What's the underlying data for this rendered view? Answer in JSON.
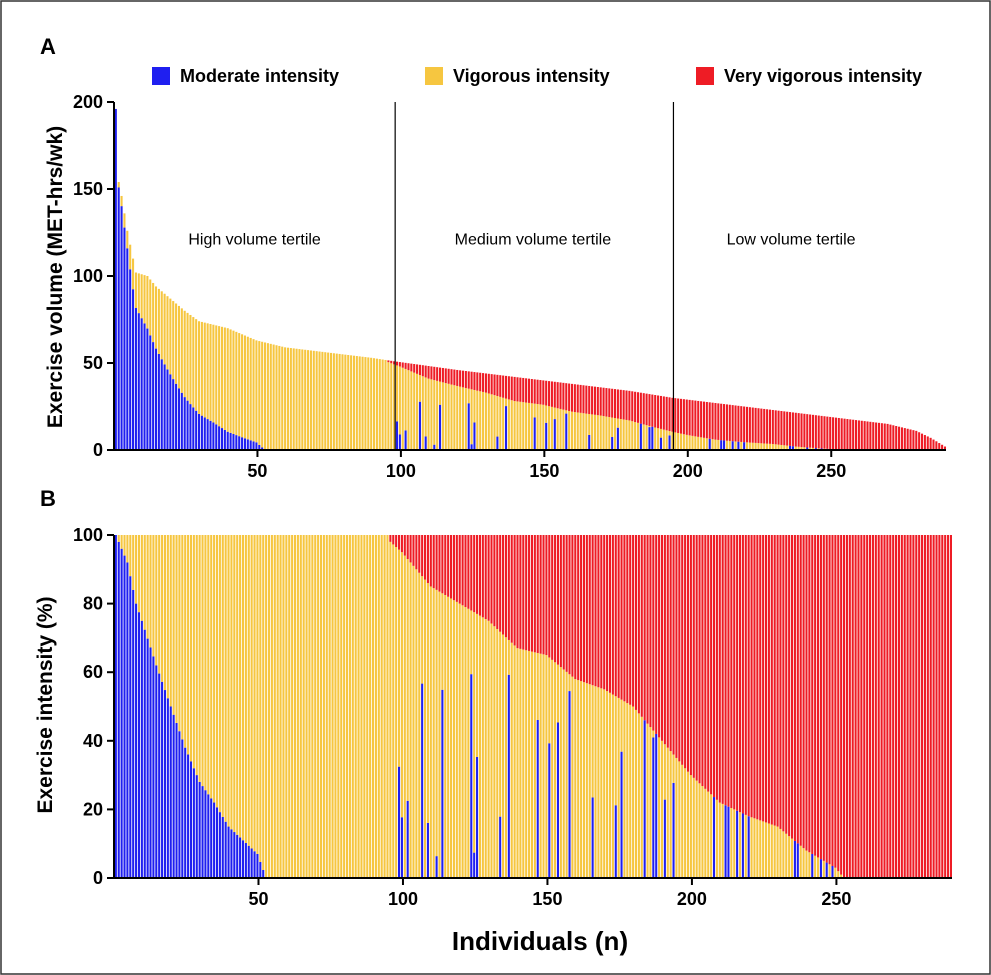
{
  "panels": {
    "a": {
      "label": "A"
    },
    "b": {
      "label": "B"
    }
  },
  "legend": {
    "items": [
      {
        "name": "Moderate intensity",
        "color": "#1f1ff0"
      },
      {
        "name": "Vigorous intensity",
        "color": "#f6c640"
      },
      {
        "name": "Very vigorous intensity",
        "color": "#ee1c25"
      }
    ]
  },
  "colors": {
    "moderate": "#1f1ff0",
    "vigorous": "#f6c640",
    "very_vigorous": "#ee1c25",
    "axis": "#000000"
  },
  "chart_data": [
    {
      "type": "bar",
      "stacked": true,
      "panel": "A",
      "ylabel": "Exercise volume (MET-hrs/wk)",
      "xlabel": "",
      "n": 290,
      "xlim": [
        0,
        290
      ],
      "ylim": [
        0,
        200
      ],
      "xticks": [
        50,
        100,
        150,
        200,
        250
      ],
      "yticks": [
        0,
        50,
        100,
        150,
        200
      ],
      "tertile_dividers": [
        98,
        195
      ],
      "tertile_labels": [
        {
          "text": "High volume tertile",
          "x": 49,
          "y": 118
        },
        {
          "text": "Medium volume tertile",
          "x": 146,
          "y": 118
        },
        {
          "text": "Low volume tertile",
          "x": 236,
          "y": 118
        }
      ],
      "total_volume_profile": [
        [
          1,
          196
        ],
        [
          2,
          154
        ],
        [
          3,
          146
        ],
        [
          5,
          126
        ],
        [
          8,
          102
        ],
        [
          12,
          100
        ],
        [
          15,
          94
        ],
        [
          20,
          87
        ],
        [
          25,
          80
        ],
        [
          30,
          74
        ],
        [
          40,
          70
        ],
        [
          50,
          63
        ],
        [
          60,
          59
        ],
        [
          70,
          57
        ],
        [
          80,
          55
        ],
        [
          90,
          53
        ],
        [
          98,
          51
        ],
        [
          120,
          46
        ],
        [
          140,
          42
        ],
        [
          160,
          38
        ],
        [
          180,
          34
        ],
        [
          195,
          30
        ],
        [
          220,
          25
        ],
        [
          250,
          19
        ],
        [
          270,
          15
        ],
        [
          280,
          11
        ],
        [
          285,
          7
        ],
        [
          290,
          2
        ]
      ],
      "series": [
        {
          "name": "Moderate intensity",
          "share_profile_pct": [
            [
              1,
              100
            ],
            [
              5,
              92
            ],
            [
              10,
              75
            ],
            [
              20,
              50
            ],
            [
              30,
              28
            ],
            [
              40,
              15
            ],
            [
              50,
              7
            ],
            [
              53,
              0
            ],
            [
              290,
              0
            ]
          ]
        },
        {
          "name": "Vigorous intensity",
          "share_profile_pct": [
            [
              1,
              0
            ],
            [
              53,
              100
            ],
            [
              95,
              100
            ],
            [
              110,
              85
            ],
            [
              130,
              75
            ],
            [
              150,
              65
            ],
            [
              170,
              55
            ],
            [
              180,
              50
            ],
            [
              190,
              40
            ],
            [
              200,
              30
            ],
            [
              210,
              22
            ],
            [
              220,
              18
            ],
            [
              230,
              15
            ],
            [
              240,
              8
            ],
            [
              250,
              3
            ],
            [
              253,
              0
            ],
            [
              290,
              0
            ]
          ]
        },
        {
          "name": "Very vigorous intensity",
          "share_profile_pct": [
            [
              1,
              0
            ],
            [
              95,
              0
            ],
            [
              110,
              15
            ],
            [
              130,
              25
            ],
            [
              150,
              35
            ],
            [
              170,
              45
            ],
            [
              180,
              50
            ],
            [
              190,
              60
            ],
            [
              200,
              70
            ],
            [
              210,
              78
            ],
            [
              220,
              82
            ],
            [
              230,
              85
            ],
            [
              240,
              92
            ],
            [
              250,
              97
            ],
            [
              253,
              100
            ],
            [
              290,
              100
            ]
          ]
        }
      ]
    },
    {
      "type": "bar",
      "stacked": true,
      "panel": "B",
      "ylabel": "Exercise intensity (%)",
      "xlabel": "Individuals (n)",
      "n": 290,
      "xlim": [
        0,
        290
      ],
      "ylim": [
        0,
        100
      ],
      "xticks": [
        50,
        100,
        150,
        200,
        250
      ],
      "yticks": [
        0,
        20,
        40,
        60,
        80,
        100
      ],
      "series": [
        {
          "name": "Moderate intensity",
          "profile": [
            [
              1,
              100
            ],
            [
              5,
              92
            ],
            [
              8,
              80
            ],
            [
              10,
              75
            ],
            [
              15,
              62
            ],
            [
              20,
              50
            ],
            [
              25,
              38
            ],
            [
              30,
              28
            ],
            [
              35,
              22
            ],
            [
              40,
              15
            ],
            [
              45,
              11
            ],
            [
              50,
              7
            ],
            [
              53,
              0
            ],
            [
              290,
              0
            ]
          ]
        },
        {
          "name": "Very vigorous intensity",
          "profile": [
            [
              1,
              0
            ],
            [
              95,
              0
            ],
            [
              96,
              2
            ],
            [
              100,
              5
            ],
            [
              110,
              15
            ],
            [
              120,
              20
            ],
            [
              130,
              25
            ],
            [
              140,
              33
            ],
            [
              150,
              35
            ],
            [
              160,
              42
            ],
            [
              170,
              45
            ],
            [
              180,
              50
            ],
            [
              190,
              60
            ],
            [
              200,
              70
            ],
            [
              210,
              78
            ],
            [
              220,
              82
            ],
            [
              230,
              85
            ],
            [
              240,
              92
            ],
            [
              250,
              97
            ],
            [
              253,
              100
            ],
            [
              290,
              100
            ]
          ]
        },
        {
          "name": "Vigorous intensity",
          "profile": "remainder to 100%"
        }
      ]
    }
  ]
}
